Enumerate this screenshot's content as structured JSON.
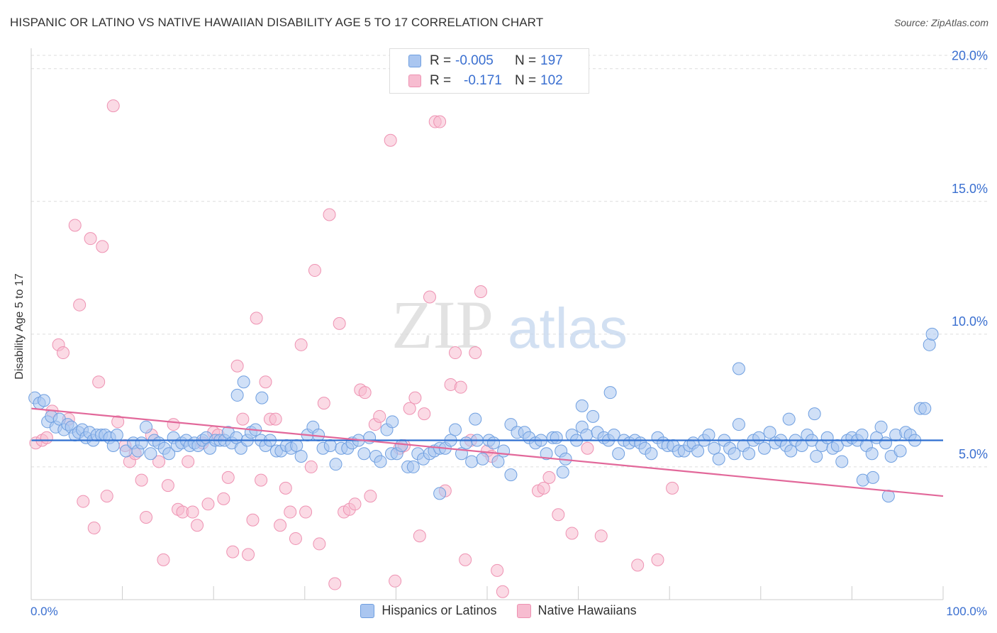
{
  "title": "HISPANIC OR LATINO VS NATIVE HAWAIIAN DISABILITY AGE 5 TO 17 CORRELATION CHART",
  "source": "Source: ZipAtlas.com",
  "watermark": {
    "zip": "ZIP",
    "atlas": "atlas"
  },
  "legend_top": {
    "rows": [
      {
        "r_label": "R =",
        "r_value": "-0.005",
        "n_label": "N =",
        "n_value": "197"
      },
      {
        "r_label": "R =",
        "r_value": "-0.171",
        "n_label": "N =",
        "n_value": "102"
      }
    ]
  },
  "legend_bottom": [
    "Hispanics or Latinos",
    "Native Hawaiians"
  ],
  "colors": {
    "blue_fill": "#aac6f0",
    "blue_stroke": "#6f9fe0",
    "blue_line": "#2f6fd0",
    "pink_fill": "#f7bcd0",
    "pink_stroke": "#ee92b2",
    "pink_line": "#e2689a",
    "tick_text": "#3a6fd0",
    "grid": "#dddddd"
  },
  "chart_data": {
    "type": "scatter",
    "title": "HISPANIC OR LATINO VS NATIVE HAWAIIAN DISABILITY AGE 5 TO 17 CORRELATION CHART",
    "xlabel": "",
    "ylabel": "Disability Age 5 to 17",
    "xlim": [
      0,
      100
    ],
    "ylim": [
      0,
      20.5
    ],
    "x_tick_labels": [
      "0.0%",
      "100.0%"
    ],
    "y_ticks": [
      5,
      10,
      15,
      20
    ],
    "y_tick_labels": [
      "5.0%",
      "10.0%",
      "15.0%",
      "20.0%"
    ],
    "grid": true,
    "legend_position": "top-center",
    "series": [
      {
        "name": "Hispanics or Latinos",
        "R": -0.005,
        "N": 197,
        "trend": [
          [
            0,
            6.0
          ],
          [
            100,
            6.0
          ]
        ],
        "points": [
          [
            0.4,
            7.6
          ],
          [
            0.9,
            7.4
          ],
          [
            1.4,
            7.5
          ],
          [
            1.8,
            6.7
          ],
          [
            2.2,
            6.9
          ],
          [
            2.7,
            6.5
          ],
          [
            3.1,
            6.8
          ],
          [
            3.6,
            6.4
          ],
          [
            4.0,
            6.6
          ],
          [
            4.4,
            6.5
          ],
          [
            4.8,
            6.2
          ],
          [
            5.2,
            6.3
          ],
          [
            5.6,
            6.4
          ],
          [
            6.0,
            6.1
          ],
          [
            6.4,
            6.3
          ],
          [
            6.8,
            6.0
          ],
          [
            7.2,
            6.2
          ],
          [
            7.7,
            6.2
          ],
          [
            8.1,
            6.2
          ],
          [
            8.6,
            6.1
          ],
          [
            9.0,
            5.8
          ],
          [
            9.4,
            6.2
          ],
          [
            10.4,
            5.6
          ],
          [
            11.2,
            5.9
          ],
          [
            11.7,
            5.6
          ],
          [
            12.1,
            5.9
          ],
          [
            12.6,
            6.5
          ],
          [
            13.1,
            5.5
          ],
          [
            13.5,
            6.0
          ],
          [
            14.0,
            5.9
          ],
          [
            14.6,
            5.7
          ],
          [
            15.1,
            5.5
          ],
          [
            15.6,
            6.1
          ],
          [
            16.0,
            5.8
          ],
          [
            16.5,
            5.9
          ],
          [
            17.0,
            6.0
          ],
          [
            17.4,
            5.8
          ],
          [
            17.9,
            5.9
          ],
          [
            18.3,
            5.8
          ],
          [
            18.8,
            6.0
          ],
          [
            19.2,
            6.1
          ],
          [
            19.6,
            5.7
          ],
          [
            20.2,
            6.0
          ],
          [
            20.7,
            6.0
          ],
          [
            21.2,
            6.0
          ],
          [
            21.6,
            6.3
          ],
          [
            22.0,
            5.9
          ],
          [
            22.5,
            6.1
          ],
          [
            23.0,
            5.7
          ],
          [
            23.7,
            6.0
          ],
          [
            24.1,
            6.3
          ],
          [
            24.6,
            6.4
          ],
          [
            25.2,
            6.0
          ],
          [
            25.7,
            5.8
          ],
          [
            26.2,
            6.0
          ],
          [
            26.9,
            5.6
          ],
          [
            27.4,
            5.6
          ],
          [
            28.0,
            5.8
          ],
          [
            28.5,
            5.7
          ],
          [
            29.1,
            5.8
          ],
          [
            29.6,
            5.4
          ],
          [
            30.3,
            6.2
          ],
          [
            30.9,
            6.5
          ],
          [
            31.5,
            6.2
          ],
          [
            32.0,
            5.7
          ],
          [
            32.8,
            5.8
          ],
          [
            33.4,
            5.1
          ],
          [
            34.0,
            5.7
          ],
          [
            34.7,
            5.7
          ],
          [
            35.2,
            5.9
          ],
          [
            35.9,
            6.0
          ],
          [
            36.5,
            5.5
          ],
          [
            37.1,
            6.1
          ],
          [
            37.8,
            5.4
          ],
          [
            38.3,
            5.2
          ],
          [
            39.0,
            6.4
          ],
          [
            39.5,
            5.5
          ],
          [
            40.1,
            5.5
          ],
          [
            40.6,
            5.8
          ],
          [
            41.3,
            5.0
          ],
          [
            41.9,
            5.0
          ],
          [
            42.4,
            5.5
          ],
          [
            43.0,
            5.3
          ],
          [
            43.7,
            5.5
          ],
          [
            44.2,
            5.6
          ],
          [
            44.8,
            5.7
          ],
          [
            45.4,
            5.7
          ],
          [
            46.0,
            6.0
          ],
          [
            46.5,
            6.4
          ],
          [
            47.2,
            5.5
          ],
          [
            47.7,
            5.9
          ],
          [
            48.3,
            5.2
          ],
          [
            48.9,
            6.0
          ],
          [
            49.5,
            5.3
          ],
          [
            50.2,
            6.0
          ],
          [
            50.7,
            5.9
          ],
          [
            51.2,
            5.2
          ],
          [
            51.8,
            5.6
          ],
          [
            52.6,
            6.6
          ],
          [
            53.3,
            6.3
          ],
          [
            54.1,
            6.3
          ],
          [
            54.6,
            6.1
          ],
          [
            55.3,
            5.9
          ],
          [
            55.9,
            6.0
          ],
          [
            56.5,
            5.5
          ],
          [
            57.2,
            6.1
          ],
          [
            57.6,
            6.1
          ],
          [
            58.1,
            5.6
          ],
          [
            58.6,
            5.3
          ],
          [
            59.3,
            6.2
          ],
          [
            59.8,
            6.0
          ],
          [
            60.4,
            6.5
          ],
          [
            60.9,
            6.2
          ],
          [
            61.6,
            6.9
          ],
          [
            62.1,
            6.3
          ],
          [
            62.8,
            6.1
          ],
          [
            63.3,
            6.0
          ],
          [
            63.9,
            6.2
          ],
          [
            64.4,
            5.5
          ],
          [
            65.0,
            6.0
          ],
          [
            65.6,
            5.9
          ],
          [
            66.2,
            6.0
          ],
          [
            66.8,
            5.9
          ],
          [
            67.3,
            5.7
          ],
          [
            68.0,
            5.5
          ],
          [
            68.7,
            6.1
          ],
          [
            69.3,
            5.9
          ],
          [
            69.8,
            5.8
          ],
          [
            70.4,
            5.8
          ],
          [
            71.0,
            5.6
          ],
          [
            71.6,
            5.6
          ],
          [
            72.2,
            5.8
          ],
          [
            72.6,
            5.9
          ],
          [
            73.1,
            5.6
          ],
          [
            73.8,
            6.0
          ],
          [
            74.3,
            6.2
          ],
          [
            74.9,
            5.7
          ],
          [
            75.4,
            5.3
          ],
          [
            76.0,
            6.0
          ],
          [
            76.6,
            5.7
          ],
          [
            77.1,
            5.5
          ],
          [
            77.6,
            6.6
          ],
          [
            78.1,
            5.8
          ],
          [
            78.7,
            5.5
          ],
          [
            79.2,
            6.0
          ],
          [
            79.8,
            6.1
          ],
          [
            80.4,
            5.7
          ],
          [
            81.0,
            6.3
          ],
          [
            81.6,
            5.9
          ],
          [
            82.2,
            6.0
          ],
          [
            82.8,
            5.8
          ],
          [
            83.3,
            5.6
          ],
          [
            83.8,
            6.0
          ],
          [
            84.5,
            5.8
          ],
          [
            85.1,
            6.2
          ],
          [
            85.6,
            6.0
          ],
          [
            86.1,
            5.4
          ],
          [
            86.7,
            5.8
          ],
          [
            87.3,
            6.1
          ],
          [
            87.9,
            5.7
          ],
          [
            88.4,
            5.8
          ],
          [
            88.9,
            5.2
          ],
          [
            89.5,
            6.0
          ],
          [
            90.0,
            6.1
          ],
          [
            90.6,
            6.0
          ],
          [
            91.1,
            6.2
          ],
          [
            91.6,
            5.8
          ],
          [
            92.2,
            5.5
          ],
          [
            92.7,
            6.1
          ],
          [
            93.2,
            6.5
          ],
          [
            93.7,
            5.9
          ],
          [
            94.3,
            5.4
          ],
          [
            94.8,
            6.2
          ],
          [
            95.3,
            5.6
          ],
          [
            95.9,
            6.3
          ],
          [
            96.4,
            6.2
          ],
          [
            96.9,
            6.0
          ],
          [
            97.5,
            7.2
          ],
          [
            98.0,
            7.2
          ],
          [
            98.5,
            9.6
          ],
          [
            98.8,
            10.0
          ],
          [
            22.6,
            7.7
          ],
          [
            23.3,
            8.2
          ],
          [
            25.3,
            7.6
          ],
          [
            63.5,
            7.8
          ],
          [
            77.6,
            8.7
          ],
          [
            85.9,
            7.0
          ],
          [
            91.2,
            4.5
          ],
          [
            92.3,
            4.6
          ],
          [
            94.0,
            3.9
          ],
          [
            44.8,
            4.0
          ],
          [
            52.6,
            4.7
          ],
          [
            58.3,
            4.8
          ],
          [
            60.4,
            7.3
          ],
          [
            83.1,
            6.8
          ],
          [
            48.7,
            6.8
          ],
          [
            39.6,
            6.7
          ]
        ]
      },
      {
        "name": "Native Hawaiians",
        "R": -0.171,
        "N": 102,
        "trend": [
          [
            0,
            7.2
          ],
          [
            100,
            3.9
          ]
        ],
        "points": [
          [
            0.5,
            5.9
          ],
          [
            1.2,
            6.0
          ],
          [
            1.7,
            6.1
          ],
          [
            2.3,
            7.1
          ],
          [
            3.0,
            9.6
          ],
          [
            3.5,
            9.3
          ],
          [
            4.1,
            6.8
          ],
          [
            4.8,
            14.1
          ],
          [
            5.3,
            11.1
          ],
          [
            5.7,
            3.7
          ],
          [
            6.5,
            13.6
          ],
          [
            6.9,
            2.7
          ],
          [
            7.4,
            8.2
          ],
          [
            7.8,
            13.3
          ],
          [
            8.3,
            3.9
          ],
          [
            9.0,
            18.6
          ],
          [
            9.5,
            6.7
          ],
          [
            10.3,
            5.8
          ],
          [
            10.8,
            5.2
          ],
          [
            11.4,
            5.5
          ],
          [
            12.1,
            4.5
          ],
          [
            12.6,
            3.1
          ],
          [
            13.2,
            6.2
          ],
          [
            14.0,
            5.2
          ],
          [
            14.5,
            1.5
          ],
          [
            15.0,
            4.3
          ],
          [
            15.6,
            6.6
          ],
          [
            16.1,
            3.4
          ],
          [
            16.6,
            3.3
          ],
          [
            17.2,
            5.2
          ],
          [
            17.7,
            3.3
          ],
          [
            18.2,
            2.8
          ],
          [
            18.8,
            5.9
          ],
          [
            19.4,
            3.6
          ],
          [
            20.0,
            6.3
          ],
          [
            20.5,
            6.2
          ],
          [
            21.1,
            3.8
          ],
          [
            21.6,
            4.6
          ],
          [
            22.1,
            1.8
          ],
          [
            22.6,
            8.8
          ],
          [
            23.2,
            6.8
          ],
          [
            23.8,
            1.7
          ],
          [
            24.3,
            3.0
          ],
          [
            24.7,
            10.6
          ],
          [
            25.2,
            4.5
          ],
          [
            25.7,
            8.2
          ],
          [
            26.2,
            6.8
          ],
          [
            26.8,
            6.8
          ],
          [
            27.3,
            2.8
          ],
          [
            27.9,
            4.2
          ],
          [
            28.4,
            3.3
          ],
          [
            29.0,
            2.3
          ],
          [
            29.6,
            9.6
          ],
          [
            30.1,
            3.3
          ],
          [
            30.7,
            5.0
          ],
          [
            31.1,
            12.4
          ],
          [
            31.6,
            2.1
          ],
          [
            32.1,
            7.4
          ],
          [
            32.7,
            14.5
          ],
          [
            33.3,
            0.6
          ],
          [
            33.8,
            10.4
          ],
          [
            34.3,
            3.3
          ],
          [
            34.9,
            3.4
          ],
          [
            35.5,
            3.6
          ],
          [
            36.1,
            7.9
          ],
          [
            36.6,
            7.8
          ],
          [
            37.2,
            3.9
          ],
          [
            37.7,
            6.6
          ],
          [
            38.2,
            6.9
          ],
          [
            39.4,
            17.3
          ],
          [
            39.9,
            0.7
          ],
          [
            40.4,
            5.7
          ],
          [
            40.9,
            5.8
          ],
          [
            41.5,
            7.2
          ],
          [
            42.1,
            7.6
          ],
          [
            42.6,
            2.4
          ],
          [
            43.1,
            7.0
          ],
          [
            43.7,
            11.4
          ],
          [
            44.3,
            18.0
          ],
          [
            44.8,
            18.0
          ],
          [
            45.4,
            4.1
          ],
          [
            46.0,
            8.1
          ],
          [
            46.5,
            9.3
          ],
          [
            47.1,
            8.0
          ],
          [
            47.6,
            1.5
          ],
          [
            48.2,
            6.0
          ],
          [
            48.7,
            9.3
          ],
          [
            49.3,
            11.6
          ],
          [
            50.0,
            5.6
          ],
          [
            50.5,
            5.4
          ],
          [
            51.1,
            1.1
          ],
          [
            51.7,
            0.3
          ],
          [
            55.6,
            4.1
          ],
          [
            56.2,
            4.2
          ],
          [
            56.8,
            4.6
          ],
          [
            57.8,
            3.2
          ],
          [
            59.3,
            2.5
          ],
          [
            61.0,
            5.7
          ],
          [
            62.5,
            2.4
          ],
          [
            66.5,
            1.3
          ],
          [
            70.3,
            4.2
          ],
          [
            68.7,
            1.5
          ]
        ]
      }
    ]
  }
}
